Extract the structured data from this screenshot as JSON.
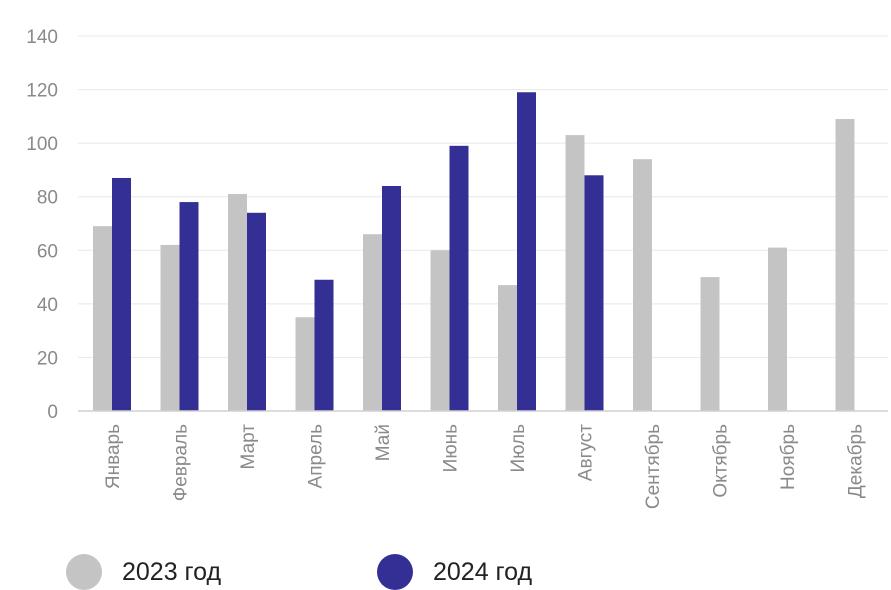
{
  "chart_data": {
    "type": "bar",
    "categories": [
      "Январь",
      "Февраль",
      "Март",
      "Апрель",
      "Май",
      "Июнь",
      "Июль",
      "Август",
      "Сентябрь",
      "Октябрь",
      "Ноябрь",
      "Декабрь"
    ],
    "series": [
      {
        "name": "2023 год",
        "color": "#c4c4c4",
        "values": [
          69,
          62,
          81,
          35,
          66,
          60,
          47,
          103,
          94,
          50,
          61,
          109
        ]
      },
      {
        "name": "2024 год",
        "color": "#332f94",
        "values": [
          87,
          78,
          74,
          49,
          84,
          99,
          119,
          88,
          null,
          null,
          null,
          null
        ]
      }
    ],
    "ylim": [
      0,
      140
    ],
    "yticks": [
      0,
      20,
      40,
      60,
      80,
      100,
      120,
      140
    ],
    "grid": true,
    "legend_position": "bottom-left"
  }
}
